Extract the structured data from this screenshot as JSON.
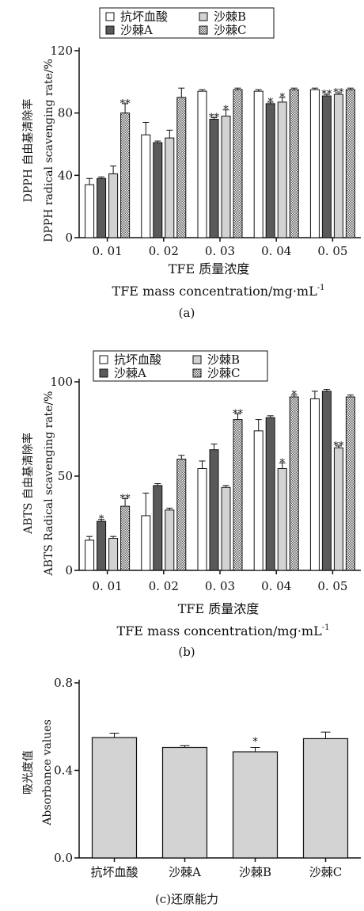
{
  "chart_data": [
    {
      "type": "bar",
      "panel": "(a)",
      "ylabel_cn": "DPPH 自由基清除率",
      "ylabel_en": "DPPH  radical  scavenging  rate/%",
      "xlabel_cn": "TFE 质量浓度",
      "xlabel_en": "TFE  mass  concentration/mg·mL",
      "xlabel_sup": "-1",
      "categories": [
        "0. 01",
        "0. 02",
        "0. 03",
        "0. 04",
        "0. 05"
      ],
      "ylim": [
        0,
        120
      ],
      "yticks": [
        "0",
        "40",
        "80",
        "120"
      ],
      "series": [
        {
          "name": "抗坏血酸",
          "values": [
            34,
            66,
            94,
            94,
            95
          ],
          "errors": [
            4,
            8,
            1,
            1,
            1
          ],
          "sig": [
            "",
            "",
            "",
            "",
            ""
          ]
        },
        {
          "name": "沙棘A",
          "values": [
            38,
            61,
            76,
            86,
            91
          ],
          "errors": [
            1,
            1,
            1,
            1,
            1
          ],
          "sig": [
            "",
            "",
            "**",
            "*",
            "**"
          ]
        },
        {
          "name": "沙棘B",
          "values": [
            41,
            64,
            78,
            87,
            92
          ],
          "errors": [
            5,
            5,
            4,
            3,
            1
          ],
          "sig": [
            "",
            "",
            "*",
            "*",
            "**"
          ]
        },
        {
          "name": "沙棘C",
          "values": [
            80,
            90,
            95,
            95,
            95
          ],
          "errors": [
            6,
            6,
            1,
            1,
            1
          ],
          "sig": [
            "**",
            "",
            "",
            "",
            ""
          ]
        }
      ],
      "legend": "top"
    },
    {
      "type": "bar",
      "panel": "(b)",
      "ylabel_cn": "ABTS 自由基清除率",
      "ylabel_en": "ABTS  Radical  scavenging  rate/%",
      "xlabel_cn": "TFE 质量浓度",
      "xlabel_en": "TFE  mass  concentration/mg·mL",
      "xlabel_sup": "-1",
      "categories": [
        "0. 01",
        "0. 02",
        "0. 03",
        "0. 04",
        "0. 05"
      ],
      "ylim": [
        0,
        100
      ],
      "yticks": [
        "0",
        "50",
        "100"
      ],
      "series": [
        {
          "name": "抗坏血酸",
          "values": [
            16,
            29,
            54,
            74,
            91
          ],
          "errors": [
            2,
            12,
            4,
            6,
            4
          ],
          "sig": [
            "",
            "",
            "",
            "",
            ""
          ]
        },
        {
          "name": "沙棘A",
          "values": [
            26,
            45,
            64,
            81,
            95
          ],
          "errors": [
            1,
            1,
            3,
            1,
            1
          ],
          "sig": [
            "*",
            "",
            "",
            "",
            ""
          ]
        },
        {
          "name": "沙棘B",
          "values": [
            17,
            32,
            44,
            54,
            65
          ],
          "errors": [
            1,
            1,
            1,
            3,
            1
          ],
          "sig": [
            "",
            "",
            "",
            "*",
            "**"
          ]
        },
        {
          "name": "沙棘C",
          "values": [
            34,
            59,
            80,
            92,
            92
          ],
          "errors": [
            4,
            2,
            3,
            1,
            1
          ],
          "sig": [
            "**",
            "",
            "**",
            "*",
            ""
          ]
        }
      ],
      "legend": "top"
    },
    {
      "type": "bar",
      "panel": "(c)还原能力",
      "ylabel_cn": "吸光度值",
      "ylabel_en": "Absorbance  values",
      "categories": [
        "抗坏血酸",
        "沙棘A",
        "沙棘B",
        "沙棘C"
      ],
      "ylim": [
        0,
        0.8
      ],
      "yticks": [
        "0.0",
        "0.4",
        "0.8"
      ],
      "values": [
        0.55,
        0.505,
        0.485,
        0.545
      ],
      "errors": [
        0.02,
        0.008,
        0.02,
        0.03
      ],
      "sig": [
        "",
        "",
        "*",
        ""
      ]
    }
  ],
  "legend_items": [
    {
      "name": "抗坏血酸",
      "fill": "white"
    },
    {
      "name": "沙棘A",
      "fill": "dark"
    },
    {
      "name": "沙棘B",
      "fill": "light"
    },
    {
      "name": "沙棘C",
      "fill": "checker"
    }
  ],
  "colors": {
    "axis": "#111111",
    "dark": "#5a5a5a",
    "light": "#d3d3d3",
    "white": "#ffffff",
    "panel_c": "#d3d3d3"
  }
}
